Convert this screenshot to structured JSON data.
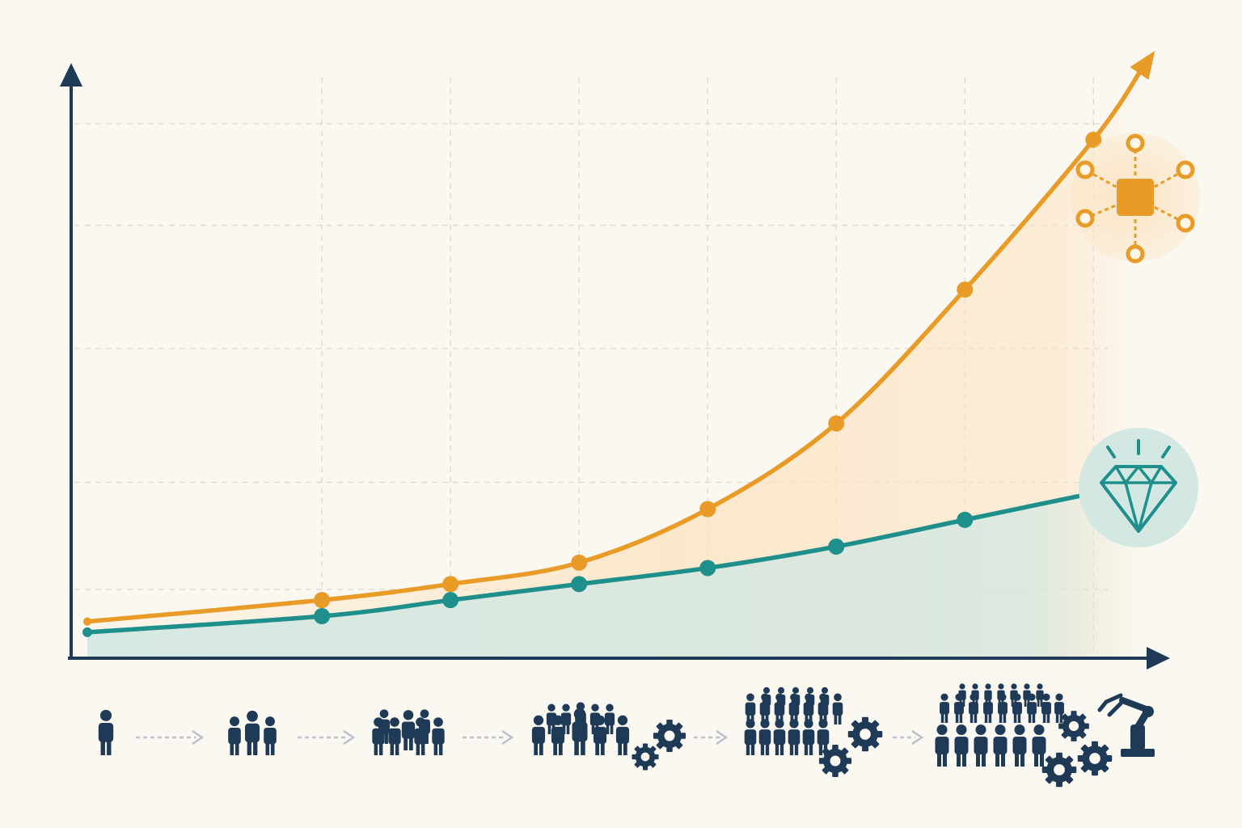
{
  "colors": {
    "background": "#fbf8f1",
    "axis": "#1e3a56",
    "grid": "#d9d9d4",
    "orange": "#e89b26",
    "teal": "#1f8f8c",
    "orange_fill": "#fbe3c0",
    "teal_fill": "#d3e8e3",
    "icon_dark": "#1e3a56",
    "connector": "#b9c2cc"
  },
  "chart_data": {
    "type": "line",
    "title": "",
    "xlabel": "",
    "ylabel": "",
    "x": [
      0,
      1,
      2,
      3,
      4,
      5,
      6,
      7
    ],
    "xlim": [
      -0.95,
      7.3
    ],
    "ylim": [
      0,
      108
    ],
    "grid": true,
    "legend": "none",
    "series": [
      {
        "color": "orange",
        "values": [
          7,
          11,
          14,
          18,
          28,
          44,
          69,
          97
        ],
        "end_icon": "network-chip-icon"
      },
      {
        "color": "teal",
        "values": [
          5,
          8,
          11,
          14,
          17,
          21,
          26,
          31
        ],
        "end_icon": "diamond-icon"
      }
    ]
  },
  "x_axis_icons": [
    {
      "name": "single-person-icon",
      "people": 1,
      "gears": 0
    },
    {
      "name": "small-team-icon",
      "people": 3,
      "gears": 0
    },
    {
      "name": "team-icon",
      "people": 6,
      "gears": 0
    },
    {
      "name": "large-team-with-gears-icon",
      "people": 10,
      "gears": 2
    },
    {
      "name": "workforce-with-gears-icon",
      "people": 18,
      "gears": 2
    },
    {
      "name": "organization-with-automation-icon",
      "people": 26,
      "gears": 3,
      "robot_arm": true
    }
  ]
}
